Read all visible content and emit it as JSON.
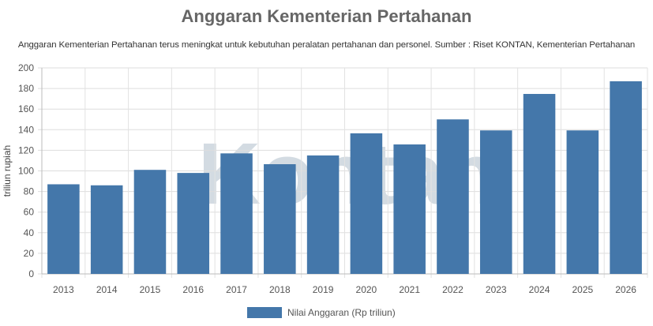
{
  "chart_data": {
    "type": "bar",
    "title": "Anggaran Kementerian Pertahanan",
    "subtitle": "Anggaran Kementerian Pertahanan terus meningkat untuk kebutuhan peralatan pertahanan dan personel. Sumber : Riset KONTAN, Kementerian Pertahanan",
    "categories": [
      "2013",
      "2014",
      "2015",
      "2016",
      "2017",
      "2018",
      "2019",
      "2020",
      "2021",
      "2022",
      "2023",
      "2024",
      "2025",
      "2026"
    ],
    "series": [
      {
        "name": "Nilai Anggaran (Rp triliun)",
        "values": [
          87,
          86,
          101,
          98,
          117,
          106.5,
          115,
          136.5,
          125.7,
          150,
          139.3,
          174.7,
          139.3,
          187
        ],
        "color": "#4477aa"
      }
    ],
    "xlabel": "",
    "ylabel": "triliun rupiah",
    "ylim": [
      0,
      200
    ],
    "yticks": [
      0,
      20,
      40,
      60,
      80,
      100,
      120,
      140,
      160,
      180,
      200
    ],
    "grid": true,
    "legend": "bottom",
    "watermark": "Kontan"
  }
}
